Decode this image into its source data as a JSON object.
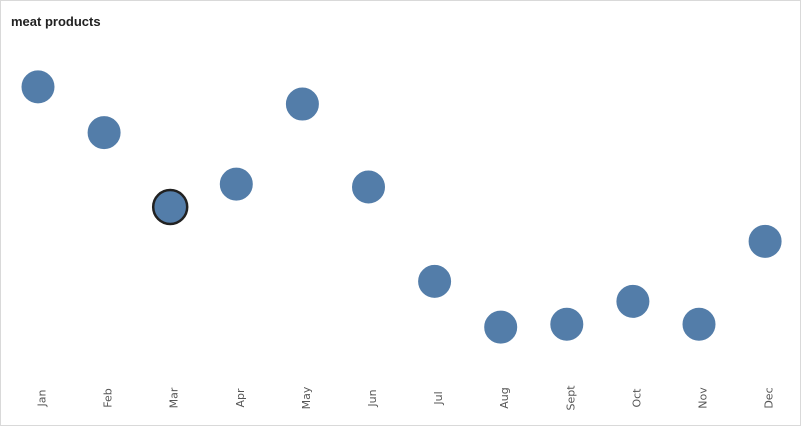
{
  "chart_data": {
    "type": "scatter",
    "title": "meat products",
    "categories": [
      "Jan",
      "Feb",
      "Mar",
      "Apr",
      "May",
      "Jun",
      "Jul",
      "Aug",
      "Sept",
      "Oct",
      "Nov",
      "Dec"
    ],
    "values": [
      92,
      76,
      50,
      58,
      86,
      57,
      24,
      8,
      9,
      17,
      9,
      38
    ],
    "ylim": [
      0,
      100
    ],
    "highlighted_category": "Mar",
    "marker_color": "#4e79a7",
    "grid": false
  }
}
